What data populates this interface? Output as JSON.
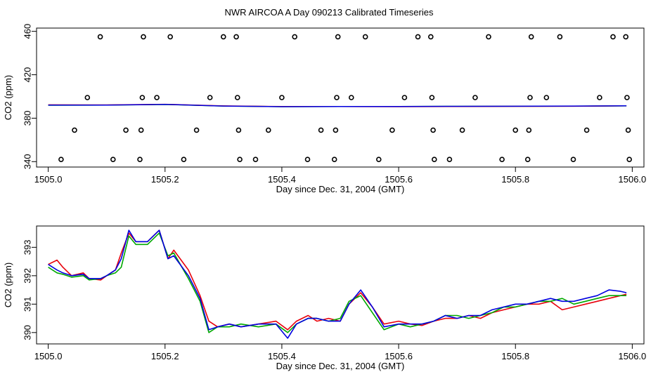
{
  "title": "NWR AIRCOA A  Day 090213  Calibrated Timeseries",
  "colors": {
    "red": "#e8000b",
    "green": "#00a800",
    "blue": "#0000e0",
    "black": "#000000"
  },
  "chart_data": [
    {
      "type": "scatter",
      "xlabel": "Day since Dec. 31, 2004 (GMT)",
      "ylabel": "CO2 (ppm)",
      "xlim": [
        1504.98,
        1506.02
      ],
      "ylim": [
        335,
        463
      ],
      "x_ticks": [
        "1505.0",
        "1505.2",
        "1505.4",
        "1505.6",
        "1505.8",
        "1506.0"
      ],
      "y_ticks": [
        "340",
        "380",
        "420",
        "460"
      ],
      "y_tick_values": [
        340,
        380,
        420,
        460
      ],
      "points": [
        [
          1505.022,
          342
        ],
        [
          1505.045,
          369
        ],
        [
          1505.067,
          399
        ],
        [
          1505.089,
          455
        ],
        [
          1505.111,
          342
        ],
        [
          1505.133,
          369
        ],
        [
          1505.157,
          342
        ],
        [
          1505.159,
          369
        ],
        [
          1505.161,
          399
        ],
        [
          1505.163,
          455
        ],
        [
          1505.186,
          399
        ],
        [
          1505.209,
          455
        ],
        [
          1505.232,
          342
        ],
        [
          1505.254,
          369
        ],
        [
          1505.277,
          399
        ],
        [
          1505.3,
          455
        ],
        [
          1505.322,
          455
        ],
        [
          1505.324,
          399
        ],
        [
          1505.326,
          369
        ],
        [
          1505.328,
          342
        ],
        [
          1505.355,
          342
        ],
        [
          1505.377,
          369
        ],
        [
          1505.4,
          399
        ],
        [
          1505.422,
          455
        ],
        [
          1505.444,
          342
        ],
        [
          1505.467,
          369
        ],
        [
          1505.49,
          342
        ],
        [
          1505.492,
          369
        ],
        [
          1505.494,
          399
        ],
        [
          1505.496,
          455
        ],
        [
          1505.519,
          399
        ],
        [
          1505.543,
          455
        ],
        [
          1505.566,
          342
        ],
        [
          1505.589,
          369
        ],
        [
          1505.61,
          399
        ],
        [
          1505.633,
          455
        ],
        [
          1505.655,
          455
        ],
        [
          1505.657,
          399
        ],
        [
          1505.659,
          369
        ],
        [
          1505.661,
          342
        ],
        [
          1505.687,
          342
        ],
        [
          1505.709,
          369
        ],
        [
          1505.731,
          399
        ],
        [
          1505.754,
          455
        ],
        [
          1505.777,
          342
        ],
        [
          1505.8,
          369
        ],
        [
          1505.821,
          342
        ],
        [
          1505.823,
          369
        ],
        [
          1505.825,
          399
        ],
        [
          1505.827,
          455
        ],
        [
          1505.853,
          399
        ],
        [
          1505.876,
          455
        ],
        [
          1505.899,
          342
        ],
        [
          1505.922,
          369
        ],
        [
          1505.944,
          399
        ],
        [
          1505.967,
          455
        ],
        [
          1505.989,
          455
        ],
        [
          1505.991,
          399
        ],
        [
          1505.993,
          369
        ],
        [
          1505.995,
          342
        ]
      ],
      "series": [
        {
          "color": "green",
          "x": [
            1505.0,
            1505.1,
            1505.2,
            1505.3,
            1505.4,
            1505.5,
            1505.6,
            1505.7,
            1505.8,
            1505.9,
            1505.99
          ],
          "y": [
            391.9,
            392.0,
            392.6,
            391.2,
            390.6,
            390.8,
            390.7,
            390.9,
            391.0,
            391.1,
            391.3
          ]
        },
        {
          "color": "red",
          "x": [
            1505.0,
            1505.1,
            1505.2,
            1505.3,
            1505.4,
            1505.5,
            1505.6,
            1505.7,
            1505.8,
            1505.9,
            1505.99
          ],
          "y": [
            392.3,
            392.2,
            392.8,
            391.3,
            390.7,
            390.7,
            390.6,
            390.8,
            390.9,
            391.0,
            391.4
          ]
        },
        {
          "color": "blue",
          "x": [
            1505.0,
            1505.1,
            1505.2,
            1505.3,
            1505.4,
            1505.5,
            1505.6,
            1505.7,
            1505.8,
            1505.9,
            1505.99
          ],
          "y": [
            392.1,
            392.1,
            392.7,
            391.2,
            390.6,
            390.8,
            390.7,
            390.9,
            391.0,
            391.2,
            391.4
          ]
        }
      ]
    },
    {
      "type": "line",
      "xlabel": "Day since Dec. 31, 2004 (GMT)",
      "ylabel": "CO2 (ppm)",
      "xlim": [
        1504.98,
        1506.02
      ],
      "ylim": [
        389.6,
        393.75
      ],
      "x_ticks": [
        "1505.0",
        "1505.2",
        "1505.4",
        "1505.6",
        "1505.8",
        "1506.0"
      ],
      "y_ticks": [
        "390",
        "391",
        "392",
        "393"
      ],
      "y_tick_values": [
        390,
        391,
        392,
        393
      ],
      "series": [
        {
          "color": "red",
          "x": [
            1505.0,
            1505.015,
            1505.025,
            1505.04,
            1505.06,
            1505.07,
            1505.09,
            1505.1,
            1505.115,
            1505.125,
            1505.138,
            1505.15,
            1505.17,
            1505.19,
            1505.205,
            1505.215,
            1505.24,
            1505.26,
            1505.275,
            1505.29,
            1505.31,
            1505.33,
            1505.36,
            1505.39,
            1505.41,
            1505.425,
            1505.445,
            1505.46,
            1505.48,
            1505.5,
            1505.515,
            1505.535,
            1505.555,
            1505.575,
            1505.6,
            1505.62,
            1505.64,
            1505.66,
            1505.68,
            1505.7,
            1505.72,
            1505.74,
            1505.76,
            1505.78,
            1505.8,
            1505.82,
            1505.84,
            1505.86,
            1505.88,
            1505.9,
            1505.92,
            1505.94,
            1505.96,
            1505.98,
            1505.99
          ],
          "y": [
            392.4,
            392.55,
            392.3,
            392.0,
            392.1,
            391.9,
            391.85,
            392.0,
            392.2,
            392.8,
            393.5,
            393.2,
            393.2,
            393.6,
            392.6,
            392.9,
            392.2,
            391.3,
            390.4,
            390.2,
            390.3,
            390.2,
            390.3,
            390.4,
            390.1,
            390.4,
            390.6,
            390.4,
            390.5,
            390.4,
            391.0,
            391.4,
            390.9,
            390.3,
            390.4,
            390.3,
            390.25,
            390.4,
            390.5,
            390.5,
            390.6,
            390.5,
            390.7,
            390.8,
            390.9,
            391.0,
            391.0,
            391.1,
            390.8,
            390.9,
            391.0,
            391.1,
            391.2,
            391.3,
            391.35
          ]
        },
        {
          "color": "green",
          "x": [
            1505.0,
            1505.015,
            1505.025,
            1505.04,
            1505.06,
            1505.07,
            1505.09,
            1505.1,
            1505.115,
            1505.125,
            1505.138,
            1505.15,
            1505.17,
            1505.19,
            1505.205,
            1505.215,
            1505.24,
            1505.26,
            1505.275,
            1505.29,
            1505.31,
            1505.33,
            1505.36,
            1505.39,
            1505.41,
            1505.425,
            1505.445,
            1505.46,
            1505.48,
            1505.5,
            1505.515,
            1505.535,
            1505.555,
            1505.575,
            1505.6,
            1505.62,
            1505.64,
            1505.66,
            1505.68,
            1505.7,
            1505.72,
            1505.74,
            1505.76,
            1505.78,
            1505.8,
            1505.82,
            1505.84,
            1505.86,
            1505.88,
            1505.9,
            1505.92,
            1505.94,
            1505.96,
            1505.98,
            1505.99
          ],
          "y": [
            392.3,
            392.1,
            392.05,
            391.95,
            392.0,
            391.85,
            391.9,
            392.0,
            392.1,
            392.3,
            393.4,
            393.1,
            393.1,
            393.5,
            392.7,
            392.8,
            391.9,
            391.1,
            390.0,
            390.2,
            390.2,
            390.3,
            390.2,
            390.3,
            390.0,
            390.3,
            390.5,
            390.5,
            390.4,
            390.5,
            391.1,
            391.3,
            390.7,
            390.1,
            390.3,
            390.2,
            390.3,
            390.4,
            390.6,
            390.6,
            390.5,
            390.6,
            390.7,
            390.9,
            390.9,
            391.0,
            391.1,
            391.1,
            391.2,
            391.0,
            391.1,
            391.2,
            391.3,
            391.3,
            391.3
          ]
        },
        {
          "color": "blue",
          "x": [
            1505.0,
            1505.015,
            1505.025,
            1505.04,
            1505.06,
            1505.07,
            1505.09,
            1505.1,
            1505.115,
            1505.125,
            1505.138,
            1505.15,
            1505.17,
            1505.19,
            1505.205,
            1505.215,
            1505.24,
            1505.26,
            1505.275,
            1505.29,
            1505.31,
            1505.33,
            1505.36,
            1505.39,
            1505.41,
            1505.425,
            1505.445,
            1505.46,
            1505.48,
            1505.5,
            1505.515,
            1505.535,
            1505.555,
            1505.575,
            1505.6,
            1505.62,
            1505.64,
            1505.66,
            1505.68,
            1505.7,
            1505.72,
            1505.74,
            1505.76,
            1505.78,
            1505.8,
            1505.82,
            1505.84,
            1505.86,
            1505.88,
            1505.9,
            1505.92,
            1505.94,
            1505.96,
            1505.98,
            1505.99
          ],
          "y": [
            392.4,
            392.2,
            392.1,
            392.0,
            392.05,
            391.9,
            391.9,
            392.0,
            392.2,
            392.6,
            393.6,
            393.2,
            393.2,
            393.6,
            392.6,
            392.7,
            392.0,
            391.2,
            390.1,
            390.2,
            390.3,
            390.2,
            390.3,
            390.3,
            389.8,
            390.3,
            390.5,
            390.5,
            390.4,
            390.4,
            391.0,
            391.5,
            390.9,
            390.2,
            390.3,
            390.3,
            390.3,
            390.4,
            390.6,
            390.5,
            390.6,
            390.6,
            390.8,
            390.9,
            391.0,
            391.0,
            391.1,
            391.2,
            391.1,
            391.1,
            391.2,
            391.3,
            391.5,
            391.45,
            391.4
          ]
        }
      ]
    }
  ]
}
